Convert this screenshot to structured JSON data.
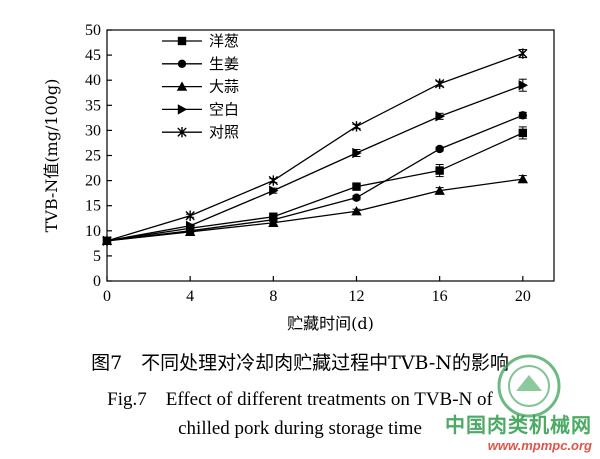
{
  "chart_data": {
    "type": "line",
    "x": [
      0,
      4,
      8,
      12,
      16,
      20
    ],
    "xlim": [
      0,
      21.5
    ],
    "ylim": [
      0,
      50
    ],
    "xticks": [
      "0",
      "4",
      "8",
      "12",
      "16",
      "20"
    ],
    "yticks": [
      "0",
      "5",
      "10",
      "15",
      "20",
      "25",
      "30",
      "35",
      "40",
      "45",
      "50"
    ],
    "xlabel": "贮藏时间(d)",
    "ylabel": "TVB-N值(mg/100g)",
    "legend_position": "top-left",
    "series": [
      {
        "name": "洋葱",
        "marker": "square",
        "values": [
          8.0,
          10.5,
          12.8,
          18.8,
          22.0,
          29.5
        ],
        "errors": [
          0.3,
          0.3,
          0.4,
          0.5,
          1.2,
          1.2
        ]
      },
      {
        "name": "生姜",
        "marker": "circle",
        "values": [
          8.0,
          10.0,
          12.2,
          16.6,
          26.3,
          33.0
        ],
        "errors": [
          0.3,
          0.3,
          0.3,
          0.4,
          0.4,
          0.6
        ]
      },
      {
        "name": "大蒜",
        "marker": "triangle",
        "values": [
          8.0,
          9.8,
          11.6,
          13.9,
          18.0,
          20.3
        ],
        "errors": [
          0.3,
          0.3,
          0.3,
          0.4,
          0.6,
          0.7
        ]
      },
      {
        "name": "空白",
        "marker": "triangle-right",
        "values": [
          8.0,
          11.0,
          18.0,
          25.5,
          32.8,
          39.0
        ],
        "errors": [
          0.3,
          0.3,
          0.5,
          0.7,
          0.6,
          1.2
        ]
      },
      {
        "name": "对照",
        "marker": "star",
        "values": [
          8.0,
          13.0,
          20.0,
          30.8,
          39.3,
          45.3
        ],
        "errors": [
          0.3,
          0.3,
          0.4,
          0.4,
          0.5,
          0.8
        ]
      }
    ]
  },
  "caption": {
    "cn": "图7　不同处理对冷却肉贮藏过程中TVB-N的影响",
    "en_line1": "Fig.7　Effect of different treatments on TVB-N of",
    "en_line2": "chilled pork during storage time"
  },
  "watermark": {
    "site_name": "中国肉类机械网",
    "url": "www.mpmpc.org",
    "logo_text": "中国肉类机械网"
  }
}
